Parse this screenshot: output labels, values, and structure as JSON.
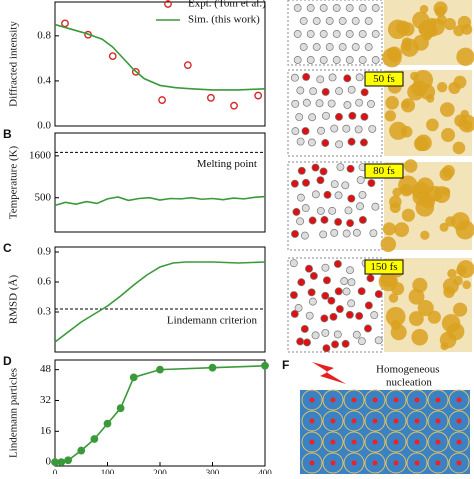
{
  "charts": [
    {
      "type": "line",
      "ylabel": "Diffracted intensity",
      "xlim": [
        0,
        400
      ],
      "ylim": [
        0,
        1.1
      ],
      "yticks": [
        {
          "value": 0,
          "label": "0.0"
        },
        0.4,
        0.8
      ],
      "series": [
        {
          "name": "Expt. (Tom et al.)",
          "style": "markers",
          "color": "#d62728",
          "x": [
            19,
            63,
            110,
            154,
            204,
            253,
            297,
            341,
            387
          ],
          "values": [
            0.91,
            0.81,
            0.62,
            0.48,
            0.23,
            0.54,
            0.25,
            0.18,
            0.27
          ]
        },
        {
          "name": "Sim. (this work)",
          "style": "line",
          "color": "#3a9a3a",
          "x": [
            0,
            30,
            60,
            90,
            110,
            130,
            150,
            170,
            200,
            230,
            260,
            300,
            350,
            400
          ],
          "values": [
            0.9,
            0.86,
            0.82,
            0.77,
            0.7,
            0.6,
            0.5,
            0.42,
            0.36,
            0.34,
            0.33,
            0.32,
            0.32,
            0.33
          ]
        }
      ]
    },
    {
      "type": "line",
      "letter": "B",
      "ylabel": "Temperature (K)",
      "xlim": [
        0,
        400
      ],
      "ylim": [
        -400,
        2200
      ],
      "yticks": [
        500,
        1600
      ],
      "hlines": [
        {
          "value": 1690,
          "label": "Melting point"
        }
      ],
      "series": [
        {
          "style": "line",
          "color": "#3a9a3a",
          "x": [
            0,
            20,
            40,
            60,
            80,
            100,
            120,
            140,
            160,
            180,
            200,
            220,
            240,
            260,
            280,
            300,
            320,
            340,
            360,
            380,
            400
          ],
          "values": [
            300,
            380,
            330,
            400,
            350,
            470,
            520,
            430,
            480,
            500,
            440,
            480,
            470,
            500,
            460,
            480,
            450,
            490,
            470,
            510,
            530
          ]
        }
      ]
    },
    {
      "type": "line",
      "letter": "C",
      "ylabel": "RMSD (Å)",
      "xlim": [
        0,
        400
      ],
      "ylim": [
        -0.1,
        0.95
      ],
      "yticks": [
        0.3,
        0.6,
        0.9
      ],
      "hlines": [
        {
          "value": 0.33,
          "label": "Lindemann criterion"
        }
      ],
      "series": [
        {
          "style": "line",
          "color": "#3a9a3a",
          "x": [
            0,
            25,
            50,
            75,
            100,
            125,
            150,
            175,
            200,
            225,
            250,
            300,
            350,
            400
          ],
          "values": [
            0,
            0.1,
            0.2,
            0.28,
            0.36,
            0.46,
            0.57,
            0.67,
            0.75,
            0.79,
            0.8,
            0.8,
            0.79,
            0.8
          ]
        }
      ]
    },
    {
      "type": "line",
      "letter": "D",
      "ylabel": "Lindemann particles",
      "xlim": [
        0,
        400
      ],
      "ylim": [
        -2,
        53
      ],
      "yticks": [
        0,
        16,
        32,
        48
      ],
      "xticks": [
        0,
        100,
        200,
        300,
        400
      ],
      "series": [
        {
          "style": "line-markers",
          "color": "#3a9a3a",
          "x": [
            0,
            12,
            25,
            50,
            75,
            100,
            125,
            150,
            200,
            300,
            400
          ],
          "values": [
            0,
            0,
            1,
            6,
            12,
            20,
            28,
            44,
            48,
            49,
            50
          ]
        }
      ]
    }
  ],
  "snapshots": [
    "50 fs",
    "80 fs",
    "150 fs"
  ],
  "panel_f": {
    "letter": "F",
    "caption": [
      "Homogeneous",
      "nucleation"
    ]
  }
}
